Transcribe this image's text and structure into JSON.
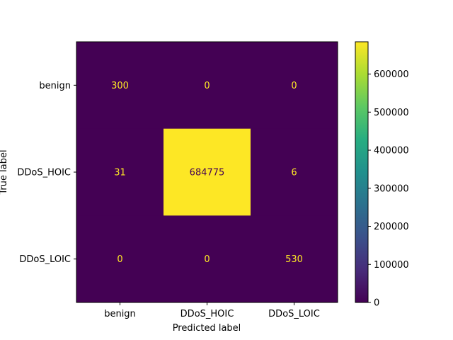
{
  "chart_data": {
    "type": "heatmap",
    "title": "",
    "xlabel": "Predicted label",
    "ylabel": "True label",
    "x_categories": [
      "benign",
      "DDoS_HOIC",
      "DDoS_LOIC"
    ],
    "y_categories": [
      "benign",
      "DDoS_HOIC",
      "DDoS_LOIC"
    ],
    "values": [
      [
        300,
        0,
        0
      ],
      [
        31,
        684775,
        6
      ],
      [
        0,
        0,
        530
      ]
    ],
    "colormap": "viridis",
    "colorbar": {
      "min": 0,
      "max": 684775,
      "ticks": [
        0,
        100000,
        200000,
        300000,
        400000,
        500000,
        600000
      ]
    },
    "text_colors": {
      "on_dark": "#fde725",
      "on_light": "#440154"
    }
  }
}
